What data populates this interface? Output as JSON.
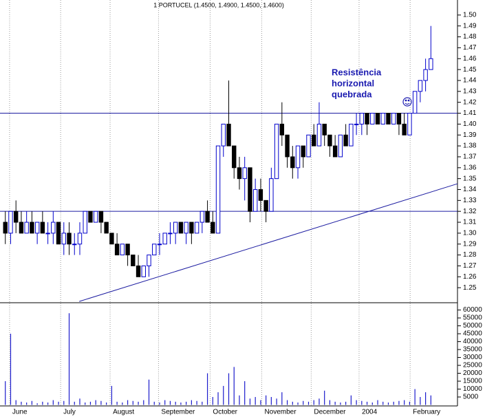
{
  "chart_data": {
    "type": "candlestick",
    "title": "1 PORTUCEL (1.4500, 1.4900, 1.4500, 1.4600)",
    "annotation": [
      "Resistência",
      "horizontal",
      "quebrada"
    ],
    "up_color": "#0000cc",
    "down_color": "#000000",
    "line_color": "#1a1aa0",
    "volume_color": "#1a1acc",
    "xlim": [
      -1,
      85
    ],
    "xticks": [
      {
        "value": 0.8,
        "label": "June"
      },
      {
        "value": 10.4,
        "label": "July"
      },
      {
        "value": 19.7,
        "label": "August"
      },
      {
        "value": 28.8,
        "label": "September"
      },
      {
        "value": 38.5,
        "label": "October"
      },
      {
        "value": 48.2,
        "label": "November"
      },
      {
        "value": 57.5,
        "label": "December"
      },
      {
        "value": 66.5,
        "label": "2004"
      },
      {
        "value": 76.1,
        "label": "February"
      }
    ],
    "ylim": [
      1.24,
      1.51
    ],
    "yticks": [
      {
        "value": 1.5,
        "label": "1.50"
      },
      1.49,
      1.48,
      1.47,
      1.46,
      1.45,
      1.44,
      1.43,
      1.42,
      1.41,
      {
        "value": 1.4,
        "label": "1.40"
      },
      1.39,
      1.38,
      1.37,
      1.36,
      1.35,
      1.34,
      1.33,
      1.32,
      1.31,
      {
        "value": 1.3,
        "label": "1.30"
      },
      1.29,
      1.28,
      1.27,
      1.26,
      1.25
    ],
    "hlines": [
      1.41,
      1.32
    ],
    "trendline": {
      "x": [
        13.9,
        85
      ],
      "y": [
        1.2374,
        1.3453
      ]
    },
    "open": [
      1.31,
      1.3,
      1.32,
      1.31,
      1.3,
      1.31,
      1.3,
      1.31,
      1.3,
      1.3,
      1.31,
      1.29,
      1.3,
      1.29,
      1.29,
      1.3,
      1.32,
      1.31,
      1.32,
      1.31,
      1.3,
      1.29,
      1.28,
      1.29,
      1.28,
      1.27,
      1.26,
      1.27,
      1.28,
      1.29,
      1.29,
      1.3,
      1.3,
      1.31,
      1.3,
      1.31,
      1.3,
      1.31,
      1.32,
      1.31,
      1.3,
      1.38,
      1.4,
      1.38,
      1.36,
      1.35,
      1.36,
      1.32,
      1.34,
      1.33,
      1.32,
      1.35,
      1.4,
      1.39,
      1.37,
      1.36,
      1.38,
      1.37,
      1.39,
      1.38,
      1.4,
      1.39,
      1.38,
      1.37,
      1.39,
      1.38,
      1.4,
      1.4,
      1.41,
      1.4,
      1.41,
      1.4,
      1.41,
      1.4,
      1.41,
      1.4,
      1.39,
      1.41,
      1.43,
      1.44,
      1.45
    ],
    "high": [
      1.32,
      1.32,
      1.33,
      1.32,
      1.32,
      1.32,
      1.31,
      1.32,
      1.31,
      1.32,
      1.31,
      1.31,
      1.31,
      1.3,
      1.31,
      1.32,
      1.32,
      1.32,
      1.32,
      1.31,
      1.3,
      1.3,
      1.29,
      1.29,
      1.28,
      1.28,
      1.27,
      1.28,
      1.29,
      1.3,
      1.3,
      1.31,
      1.31,
      1.31,
      1.31,
      1.31,
      1.31,
      1.32,
      1.33,
      1.32,
      1.38,
      1.4,
      1.44,
      1.38,
      1.37,
      1.37,
      1.36,
      1.35,
      1.35,
      1.33,
      1.36,
      1.4,
      1.42,
      1.39,
      1.38,
      1.38,
      1.38,
      1.39,
      1.4,
      1.42,
      1.4,
      1.39,
      1.39,
      1.39,
      1.4,
      1.4,
      1.41,
      1.41,
      1.41,
      1.41,
      1.41,
      1.41,
      1.41,
      1.41,
      1.41,
      1.41,
      1.41,
      1.43,
      1.44,
      1.46,
      1.49
    ],
    "low": [
      1.29,
      1.29,
      1.3,
      1.3,
      1.3,
      1.3,
      1.29,
      1.3,
      1.29,
      1.29,
      1.29,
      1.28,
      1.28,
      1.28,
      1.28,
      1.3,
      1.31,
      1.31,
      1.3,
      1.3,
      1.29,
      1.28,
      1.28,
      1.27,
      1.27,
      1.26,
      1.26,
      1.26,
      1.28,
      1.28,
      1.29,
      1.29,
      1.29,
      1.3,
      1.29,
      1.29,
      1.3,
      1.3,
      1.31,
      1.3,
      1.3,
      1.37,
      1.38,
      1.35,
      1.34,
      1.33,
      1.31,
      1.32,
      1.32,
      1.31,
      1.32,
      1.35,
      1.38,
      1.36,
      1.35,
      1.35,
      1.36,
      1.37,
      1.38,
      1.38,
      1.38,
      1.37,
      1.37,
      1.37,
      1.38,
      1.38,
      1.39,
      1.39,
      1.39,
      1.4,
      1.4,
      1.4,
      1.4,
      1.4,
      1.39,
      1.39,
      1.39,
      1.41,
      1.42,
      1.43,
      1.45
    ],
    "close": [
      1.3,
      1.32,
      1.31,
      1.3,
      1.31,
      1.3,
      1.31,
      1.3,
      1.3,
      1.31,
      1.29,
      1.3,
      1.29,
      1.29,
      1.3,
      1.32,
      1.31,
      1.32,
      1.31,
      1.3,
      1.29,
      1.28,
      1.29,
      1.28,
      1.27,
      1.26,
      1.27,
      1.28,
      1.29,
      1.29,
      1.3,
      1.3,
      1.31,
      1.3,
      1.31,
      1.3,
      1.31,
      1.32,
      1.31,
      1.3,
      1.38,
      1.4,
      1.38,
      1.36,
      1.35,
      1.36,
      1.32,
      1.34,
      1.33,
      1.32,
      1.35,
      1.4,
      1.39,
      1.37,
      1.36,
      1.38,
      1.37,
      1.39,
      1.38,
      1.4,
      1.39,
      1.38,
      1.37,
      1.39,
      1.38,
      1.4,
      1.4,
      1.41,
      1.4,
      1.41,
      1.4,
      1.41,
      1.4,
      1.41,
      1.4,
      1.39,
      1.41,
      1.43,
      1.44,
      1.45,
      1.46
    ],
    "volume": [
      15000,
      45000,
      3000,
      2000,
      1500,
      2500,
      1000,
      2000,
      1500,
      3000,
      2000,
      2500,
      58000,
      2000,
      4000,
      1500,
      2000,
      3000,
      2500,
      1500,
      12000,
      2000,
      1500,
      3000,
      2500,
      2000,
      3000,
      16000,
      2000,
      1500,
      3000,
      2500,
      2000,
      1500,
      2000,
      3000,
      2500,
      2000,
      20000,
      5000,
      8000,
      12000,
      20000,
      24000,
      6000,
      15000,
      4000,
      5000,
      3000,
      6000,
      5000,
      4000,
      8000,
      3000,
      2000,
      1500,
      2500,
      2000,
      3000,
      4000,
      9000,
      3000,
      2000,
      1500,
      2000,
      6000,
      3000,
      2500,
      2000,
      1500,
      3000,
      2000,
      1500,
      2000,
      2500,
      3000,
      2000,
      10000,
      5000,
      8000,
      6000
    ],
    "y2lim": [
      0,
      62000
    ],
    "y2ticks": [
      60000,
      55000,
      50000,
      45000,
      40000,
      35000,
      30000,
      25000,
      20000,
      15000,
      10000,
      5000
    ]
  }
}
